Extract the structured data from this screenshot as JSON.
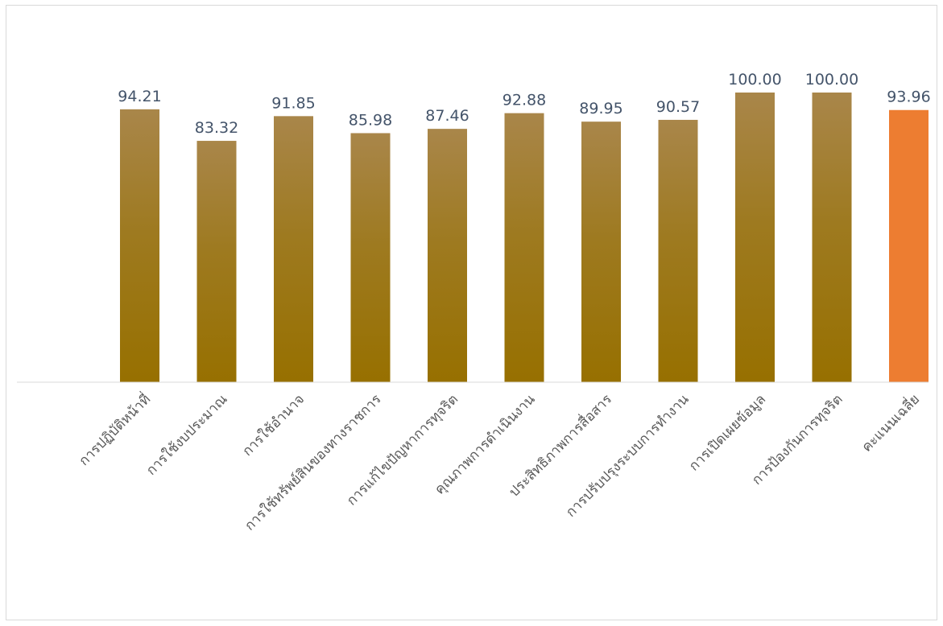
{
  "chart_data": {
    "type": "bar",
    "categories": [
      "การปฏิบัติหน้าที่",
      "การใช้งบประมาณ",
      "การใช้อำนาจ",
      "การใช้ทรัพย์สินของทางราชการ",
      "การแก้ไขปัญหาการทุจริต",
      "คุณภาพการดำเนินงาน",
      "ประสิทธิภาพการสื่อสาร",
      "การปรับปรุงระบบการทำงาน",
      "การเปิดเผยข้อมูล",
      "การป้องกันการทุจริต",
      "คะแนนเฉลี่ย"
    ],
    "values": [
      94.21,
      83.32,
      91.85,
      85.98,
      87.46,
      92.88,
      89.95,
      90.57,
      100.0,
      100.0,
      93.96
    ],
    "value_labels": [
      "94.21",
      "83.32",
      "91.85",
      "85.98",
      "87.46",
      "92.88",
      "89.95",
      "90.57",
      "100.00",
      "100.00",
      "93.96"
    ],
    "ylim": [
      0,
      100
    ],
    "grid": false,
    "legend": "none",
    "title": "",
    "xlabel": "",
    "ylabel": "",
    "colors": {
      "bar_top": "#a9864a",
      "bar_bottom": "#977000",
      "highlight": "#ed7d31",
      "axis": "#d9d9d9",
      "value_text": "#44546a",
      "category_text": "#595959"
    },
    "highlight_index": 10
  }
}
